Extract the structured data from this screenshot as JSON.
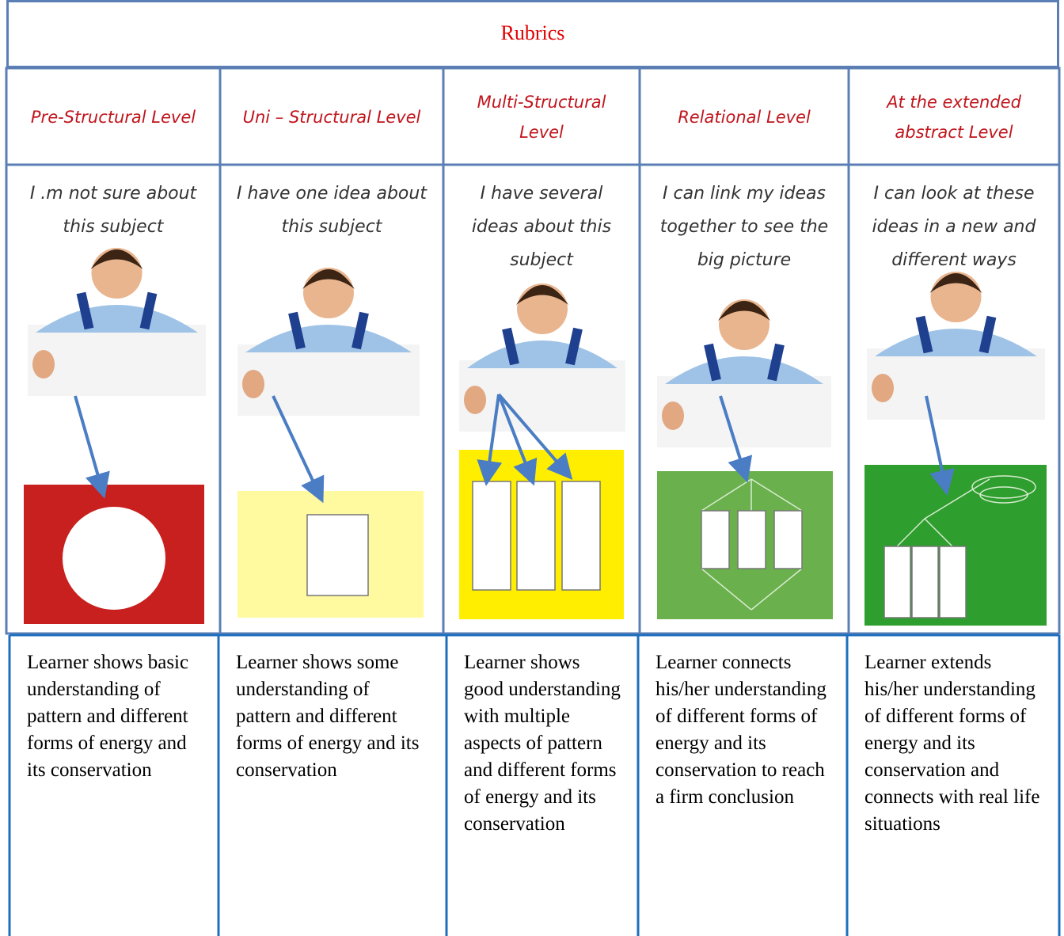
{
  "title": "Rubrics",
  "levels": [
    {
      "heading": "Pre-Structural Level",
      "caption": "I .m not sure about this subject",
      "description": "Learner shows basic understanding of pattern and different forms of energy and its conservation"
    },
    {
      "heading": "Uni – Structural Level",
      "caption": "I have one idea about this subject",
      "description": "Learner shows some understanding of pattern and different forms of energy and its conservation"
    },
    {
      "heading": "Multi-Structural Level",
      "caption": "I have several ideas about this subject",
      "description": "Learner shows good understanding with multiple aspects of pattern and different forms of energy and its conservation"
    },
    {
      "heading": "Relational Level",
      "caption": "I can link my ideas together to see the big picture",
      "description": "Learner connects his/her understanding of different forms of energy and its conservation to reach a firm conclusion"
    },
    {
      "heading": "At the extended abstract Level",
      "caption": "I can look at these ideas in a new and different ways",
      "description": "Learner extends his/her understanding of different forms of energy and its conservation and connects with real life situations"
    }
  ]
}
